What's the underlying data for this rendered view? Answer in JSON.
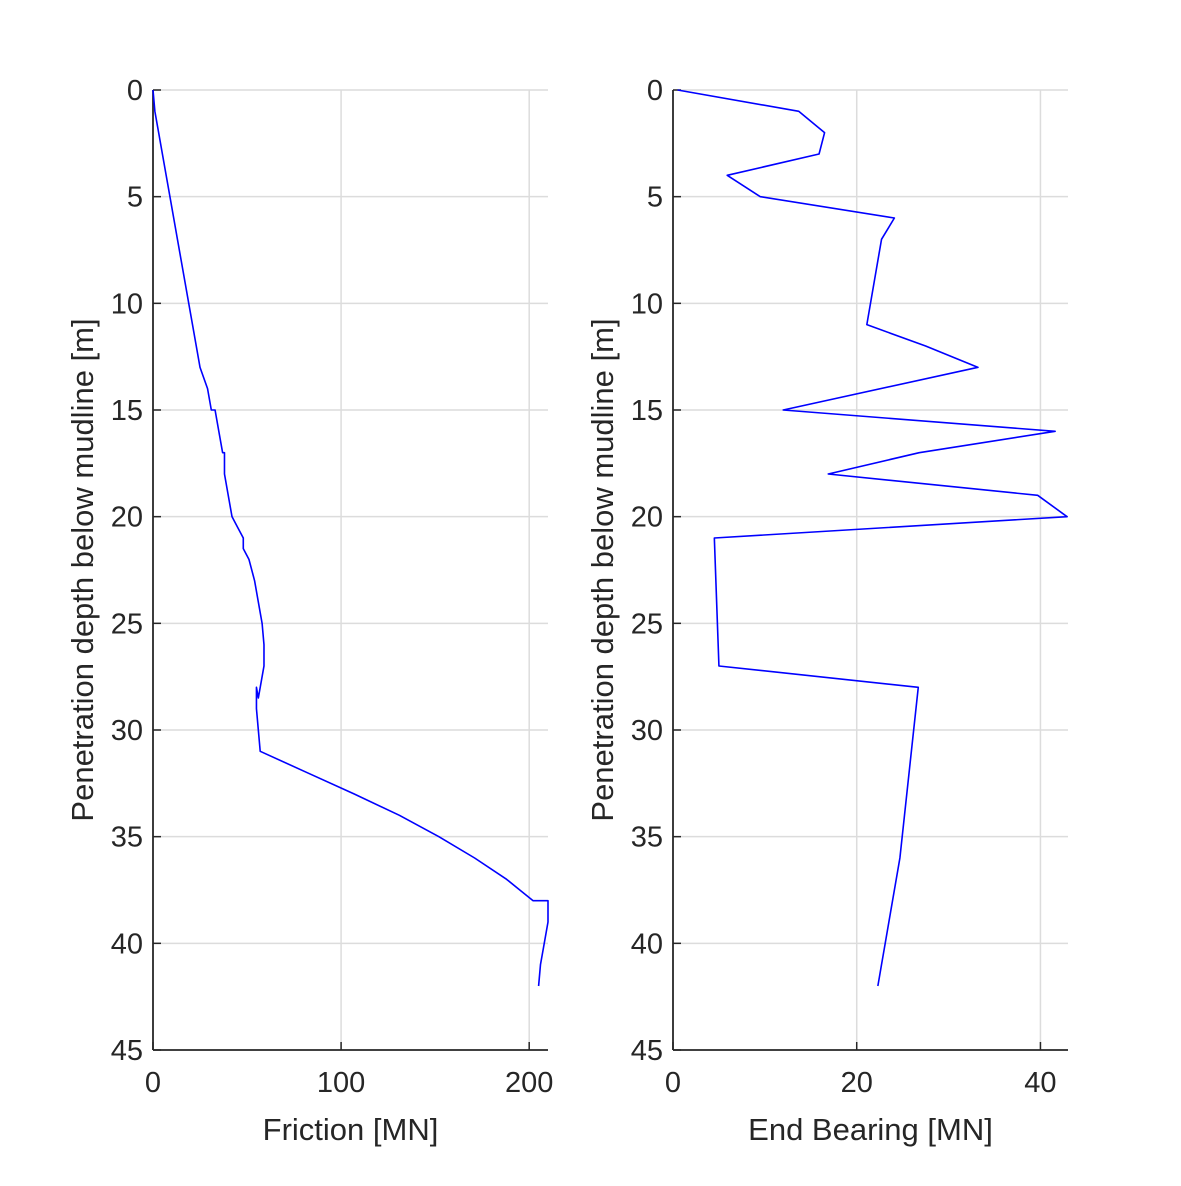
{
  "colors": {
    "line": "#0000ff",
    "grid": "#dcdcdc",
    "axis": "#262626",
    "text": "#262626"
  },
  "chart_data": [
    {
      "type": "line",
      "xlabel": "Friction [MN]",
      "ylabel": "Penetration depth below mudline [m]",
      "xlim": [
        0,
        210
      ],
      "ylim": [
        0,
        45
      ],
      "y_reversed": true,
      "grid": true,
      "xticks": [
        0,
        100,
        200
      ],
      "yticks": [
        0,
        5,
        10,
        15,
        20,
        25,
        30,
        35,
        40,
        45
      ],
      "series": [
        {
          "x": [
            0,
            1,
            3,
            5,
            7,
            9,
            11,
            13,
            15,
            17,
            19,
            21,
            23,
            25,
            27,
            29,
            31,
            33,
            35,
            37,
            38,
            38,
            40,
            42,
            45,
            48,
            48,
            51,
            54,
            56,
            58,
            59,
            59,
            57,
            56,
            55,
            55,
            56,
            57,
            82,
            107,
            131,
            152,
            171,
            188,
            202,
            210,
            210,
            208,
            206,
            205,
            205
          ],
          "y": [
            0,
            1,
            2,
            3,
            4,
            5,
            6,
            7,
            8,
            9,
            10,
            11,
            12,
            13,
            13.5,
            14,
            15,
            15,
            16,
            17,
            17,
            18,
            19,
            20,
            20.5,
            21,
            21.5,
            22,
            23,
            24,
            25,
            26,
            27,
            28,
            28.5,
            28,
            29,
            30,
            31,
            32,
            33,
            34,
            35,
            36,
            37,
            38,
            38,
            39,
            40,
            41,
            42,
            42
          ]
        }
      ]
    },
    {
      "type": "line",
      "xlabel": "End Bearing [MN]",
      "ylabel": "Penetration depth below mudline [m]",
      "xlim": [
        0,
        43
      ],
      "ylim": [
        0,
        45
      ],
      "y_reversed": true,
      "grid": true,
      "xticks": [
        0,
        20,
        40
      ],
      "yticks": [
        0,
        5,
        10,
        15,
        20,
        25,
        30,
        35,
        40,
        45
      ],
      "series": [
        {
          "x": [
            0.5,
            13.7,
            16.5,
            15.9,
            5.9,
            9.5,
            24.1,
            22.7,
            21.1,
            27.5,
            33.2,
            12.0,
            41.6,
            26.8,
            16.9,
            39.7,
            42.9,
            4.5,
            5.0,
            26.7,
            26.2,
            25.7,
            25.2,
            24.7,
            24.3,
            23.9,
            23.5,
            23.1,
            22.7,
            22.5,
            22.3
          ],
          "y": [
            0,
            1,
            2,
            3,
            4,
            5,
            6,
            7,
            11,
            12,
            13,
            15,
            16,
            17,
            18,
            19,
            20,
            21,
            27,
            28,
            30,
            32,
            34,
            36,
            37,
            38,
            39,
            40,
            41,
            41.5,
            42
          ]
        }
      ]
    }
  ]
}
